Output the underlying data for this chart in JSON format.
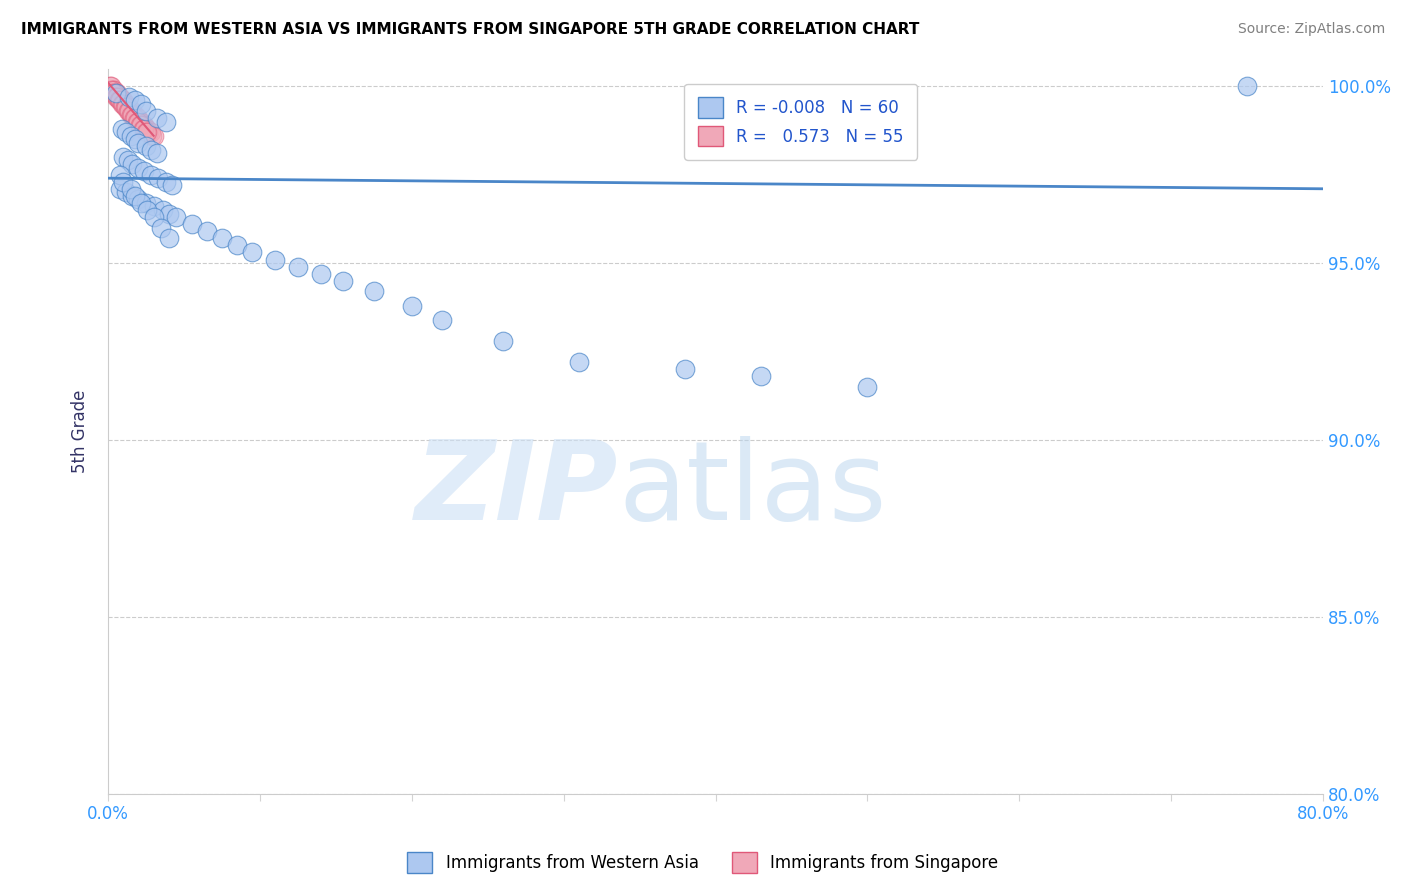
{
  "title": "IMMIGRANTS FROM WESTERN ASIA VS IMMIGRANTS FROM SINGAPORE 5TH GRADE CORRELATION CHART",
  "source": "Source: ZipAtlas.com",
  "ylabel": "5th Grade",
  "xlim": [
    0.0,
    0.8
  ],
  "ylim": [
    0.8,
    1.005
  ],
  "x_ticks": [
    0.0,
    0.1,
    0.2,
    0.3,
    0.4,
    0.5,
    0.6,
    0.7,
    0.8
  ],
  "y_ticks": [
    0.8,
    0.85,
    0.9,
    0.95,
    1.0
  ],
  "y_tick_labels": [
    "80.0%",
    "85.0%",
    "90.0%",
    "95.0%",
    "100.0%"
  ],
  "blue_color": "#adc8f0",
  "pink_color": "#f0a8b8",
  "trend_color_blue": "#4a86c8",
  "trend_color_pink": "#e05878",
  "blue_scatter_x": [
    0.75,
    0.005,
    0.014,
    0.018,
    0.022,
    0.025,
    0.032,
    0.038,
    0.009,
    0.012,
    0.015,
    0.018,
    0.02,
    0.025,
    0.028,
    0.032,
    0.01,
    0.013,
    0.016,
    0.02,
    0.024,
    0.028,
    0.033,
    0.038,
    0.042,
    0.008,
    0.012,
    0.016,
    0.02,
    0.025,
    0.03,
    0.036,
    0.04,
    0.045,
    0.055,
    0.065,
    0.075,
    0.085,
    0.095,
    0.11,
    0.125,
    0.14,
    0.155,
    0.175,
    0.2,
    0.22,
    0.26,
    0.31,
    0.38,
    0.43,
    0.5,
    0.008,
    0.01,
    0.015,
    0.018,
    0.022,
    0.026,
    0.03,
    0.035,
    0.04
  ],
  "blue_scatter_y": [
    1.0,
    0.998,
    0.997,
    0.996,
    0.995,
    0.993,
    0.991,
    0.99,
    0.988,
    0.987,
    0.986,
    0.985,
    0.984,
    0.983,
    0.982,
    0.981,
    0.98,
    0.979,
    0.978,
    0.977,
    0.976,
    0.975,
    0.974,
    0.973,
    0.972,
    0.971,
    0.97,
    0.969,
    0.968,
    0.967,
    0.966,
    0.965,
    0.964,
    0.963,
    0.961,
    0.959,
    0.957,
    0.955,
    0.953,
    0.951,
    0.949,
    0.947,
    0.945,
    0.942,
    0.938,
    0.934,
    0.928,
    0.922,
    0.92,
    0.918,
    0.915,
    0.975,
    0.973,
    0.971,
    0.969,
    0.967,
    0.965,
    0.963,
    0.96,
    0.957
  ],
  "blue_trend_x": [
    0.0,
    0.8
  ],
  "blue_trend_y": [
    0.974,
    0.971
  ],
  "pink_scatter_x": [
    0.001,
    0.002,
    0.003,
    0.004,
    0.005,
    0.006,
    0.007,
    0.008,
    0.009,
    0.01,
    0.011,
    0.012,
    0.013,
    0.014,
    0.015,
    0.016,
    0.017,
    0.018,
    0.019,
    0.02,
    0.021,
    0.022,
    0.023,
    0.024,
    0.025,
    0.026,
    0.027,
    0.028,
    0.029,
    0.03,
    0.002,
    0.003,
    0.004,
    0.005,
    0.006,
    0.007,
    0.008,
    0.009,
    0.01,
    0.011,
    0.012,
    0.013,
    0.014,
    0.015,
    0.016,
    0.017,
    0.018,
    0.019,
    0.02,
    0.021,
    0.022,
    0.023,
    0.024,
    0.025,
    0.026
  ],
  "pink_scatter_y": [
    1.0,
    1.0,
    0.999,
    0.999,
    0.998,
    0.998,
    0.997,
    0.997,
    0.996,
    0.996,
    0.995,
    0.995,
    0.994,
    0.994,
    0.993,
    0.993,
    0.992,
    0.992,
    0.991,
    0.991,
    0.99,
    0.99,
    0.989,
    0.989,
    0.988,
    0.988,
    0.987,
    0.987,
    0.986,
    0.986,
    0.999,
    0.998,
    0.998,
    0.997,
    0.997,
    0.996,
    0.996,
    0.995,
    0.995,
    0.994,
    0.994,
    0.993,
    0.993,
    0.992,
    0.992,
    0.991,
    0.991,
    0.99,
    0.99,
    0.989,
    0.989,
    0.988,
    0.988,
    0.987,
    0.987
  ],
  "pink_trend_x": [
    0.0,
    0.03
  ],
  "pink_trend_y": [
    1.001,
    0.986
  ]
}
